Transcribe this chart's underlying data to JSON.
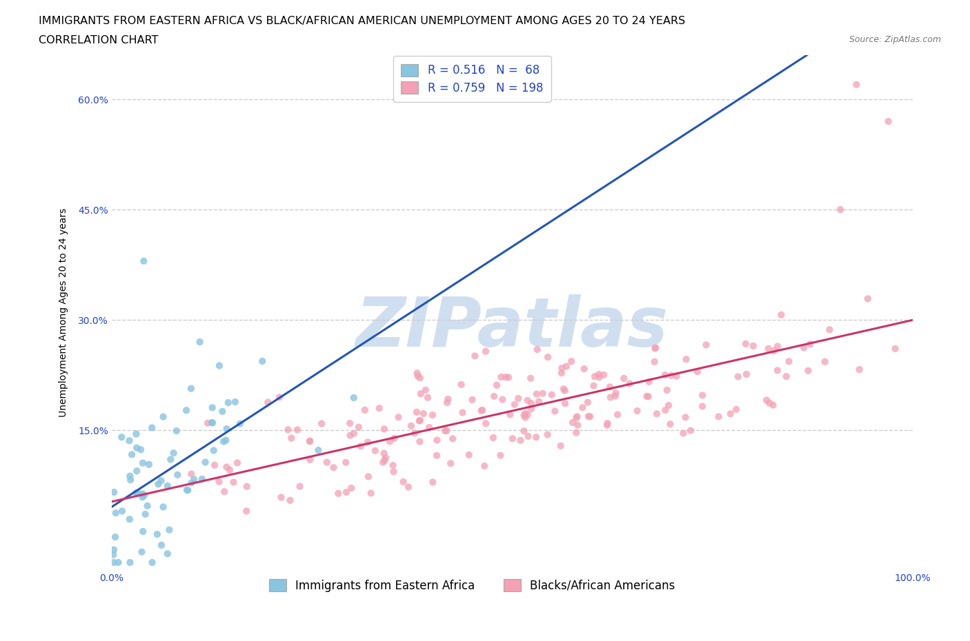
{
  "title_line1": "IMMIGRANTS FROM EASTERN AFRICA VS BLACK/AFRICAN AMERICAN UNEMPLOYMENT AMONG AGES 20 TO 24 YEARS",
  "title_line2": "CORRELATION CHART",
  "source_text": "Source: ZipAtlas.com",
  "ylabel": "Unemployment Among Ages 20 to 24 years",
  "xlim": [
    0.0,
    1.0
  ],
  "ylim": [
    -0.04,
    0.66
  ],
  "xtick_labels": [
    "0.0%",
    "100.0%"
  ],
  "ytick_labels": [
    "15.0%",
    "30.0%",
    "45.0%",
    "60.0%"
  ],
  "ytick_values": [
    0.15,
    0.3,
    0.45,
    0.6
  ],
  "legend_bottom_labels": [
    "Immigrants from Eastern Africa",
    "Blacks/African Americans"
  ],
  "R_blue": 0.516,
  "N_blue": 68,
  "R_pink": 0.759,
  "N_pink": 198,
  "blue_color": "#89c4e1",
  "pink_color": "#f4a0b5",
  "blue_line_color": "#2255bb",
  "pink_line_color": "#cc3366",
  "watermark_color": "#d0dff0",
  "background_color": "#ffffff",
  "grid_color": "#cccccc",
  "title_fontsize": 11.5,
  "subtitle_fontsize": 11.5,
  "axis_label_fontsize": 10,
  "tick_fontsize": 10,
  "legend_fontsize": 12,
  "legend_text_color": "#2244cc",
  "source_color": "#777777"
}
